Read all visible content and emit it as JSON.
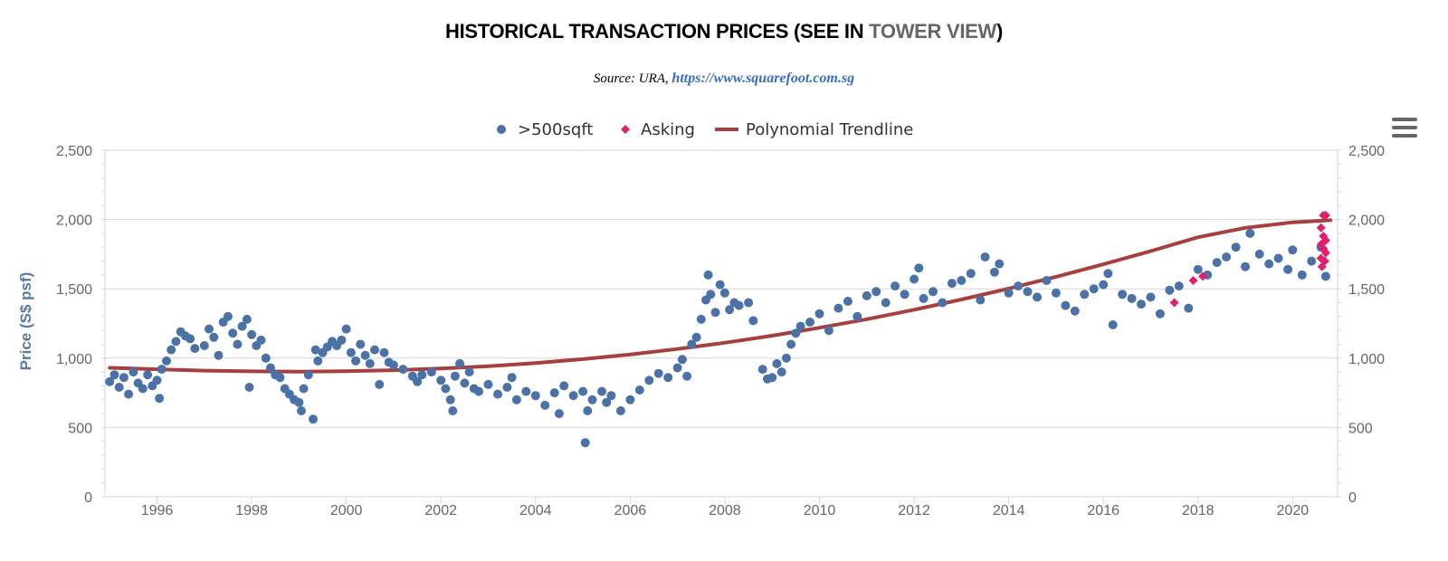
{
  "header": {
    "title_prefix": "HISTORICAL TRANSACTION PRICES (SEE IN ",
    "title_link": "TOWER VIEW",
    "title_suffix": ")",
    "source_prefix": "Source: URA, ",
    "source_url": "https://www.squarefoot.com.sg"
  },
  "menu_icon": "hamburger-menu-icon",
  "chart_data": {
    "type": "scatter",
    "ylabel": "Price (S$ psf)",
    "xlim": [
      1994.9,
      2020.95
    ],
    "ylim": [
      0,
      2500
    ],
    "x_ticks": [
      "1996",
      "1998",
      "2000",
      "2002",
      "2004",
      "2006",
      "2008",
      "2010",
      "2012",
      "2014",
      "2016",
      "2018",
      "2020"
    ],
    "y_ticks": [
      "0",
      "500",
      "1,000",
      "1,500",
      "2,000",
      "2,500"
    ],
    "grid": true,
    "legend_position": "top-center",
    "legend": [
      ">500sqft",
      "Asking",
      "Polynomial Trendline"
    ],
    "colors": {
      "transactions": "#4a72a6",
      "asking": "#e0206a",
      "trendline": "#a83f3f"
    },
    "series": [
      {
        "name": ">500sqft",
        "marker": "circle",
        "points": [
          [
            1995.0,
            830
          ],
          [
            1995.1,
            880
          ],
          [
            1995.2,
            790
          ],
          [
            1995.3,
            860
          ],
          [
            1995.4,
            740
          ],
          [
            1995.5,
            900
          ],
          [
            1995.6,
            820
          ],
          [
            1995.7,
            780
          ],
          [
            1995.8,
            880
          ],
          [
            1995.9,
            800
          ],
          [
            1996.0,
            840
          ],
          [
            1996.05,
            710
          ],
          [
            1996.1,
            920
          ],
          [
            1996.2,
            980
          ],
          [
            1996.3,
            1060
          ],
          [
            1996.4,
            1120
          ],
          [
            1996.5,
            1190
          ],
          [
            1996.6,
            1160
          ],
          [
            1996.7,
            1140
          ],
          [
            1996.8,
            1070
          ],
          [
            1997.0,
            1090
          ],
          [
            1997.1,
            1210
          ],
          [
            1997.2,
            1150
          ],
          [
            1997.3,
            1020
          ],
          [
            1997.4,
            1260
          ],
          [
            1997.5,
            1300
          ],
          [
            1997.6,
            1180
          ],
          [
            1997.7,
            1100
          ],
          [
            1997.8,
            1230
          ],
          [
            1997.9,
            1280
          ],
          [
            1998.0,
            1170
          ],
          [
            1998.1,
            1090
          ],
          [
            1998.2,
            1130
          ],
          [
            1998.3,
            1000
          ],
          [
            1997.95,
            790
          ],
          [
            1998.4,
            930
          ],
          [
            1998.5,
            880
          ],
          [
            1998.6,
            860
          ],
          [
            1998.7,
            780
          ],
          [
            1998.8,
            740
          ],
          [
            1998.9,
            700
          ],
          [
            1999.0,
            680
          ],
          [
            1999.05,
            620
          ],
          [
            1999.1,
            780
          ],
          [
            1999.2,
            880
          ],
          [
            1999.3,
            560
          ],
          [
            1999.35,
            1060
          ],
          [
            1999.4,
            980
          ],
          [
            1999.5,
            1040
          ],
          [
            1999.6,
            1080
          ],
          [
            1999.7,
            1120
          ],
          [
            1999.8,
            1090
          ],
          [
            1999.9,
            1130
          ],
          [
            2000.0,
            1210
          ],
          [
            2000.1,
            1040
          ],
          [
            2000.2,
            980
          ],
          [
            2000.3,
            1100
          ],
          [
            2000.4,
            1020
          ],
          [
            2000.5,
            960
          ],
          [
            2000.6,
            1060
          ],
          [
            2000.7,
            810
          ],
          [
            2000.8,
            1040
          ],
          [
            2000.9,
            970
          ],
          [
            2001.0,
            950
          ],
          [
            2001.2,
            920
          ],
          [
            2001.4,
            870
          ],
          [
            2001.5,
            830
          ],
          [
            2001.6,
            880
          ],
          [
            2001.8,
            900
          ],
          [
            2002.0,
            840
          ],
          [
            2002.1,
            780
          ],
          [
            2002.2,
            700
          ],
          [
            2002.25,
            620
          ],
          [
            2002.3,
            870
          ],
          [
            2002.4,
            960
          ],
          [
            2002.5,
            820
          ],
          [
            2002.6,
            900
          ],
          [
            2002.7,
            780
          ],
          [
            2002.8,
            760
          ],
          [
            2003.0,
            810
          ],
          [
            2003.2,
            740
          ],
          [
            2003.4,
            790
          ],
          [
            2003.5,
            860
          ],
          [
            2003.6,
            700
          ],
          [
            2003.8,
            760
          ],
          [
            2004.0,
            730
          ],
          [
            2004.2,
            660
          ],
          [
            2004.4,
            750
          ],
          [
            2004.5,
            600
          ],
          [
            2004.6,
            800
          ],
          [
            2004.8,
            730
          ],
          [
            2005.0,
            760
          ],
          [
            2005.05,
            390
          ],
          [
            2005.1,
            620
          ],
          [
            2005.2,
            700
          ],
          [
            2005.4,
            760
          ],
          [
            2005.5,
            680
          ],
          [
            2005.6,
            730
          ],
          [
            2005.8,
            620
          ],
          [
            2006.0,
            700
          ],
          [
            2006.2,
            770
          ],
          [
            2006.4,
            840
          ],
          [
            2006.6,
            890
          ],
          [
            2006.8,
            860
          ],
          [
            2007.0,
            930
          ],
          [
            2007.1,
            990
          ],
          [
            2007.2,
            870
          ],
          [
            2007.3,
            1100
          ],
          [
            2007.4,
            1150
          ],
          [
            2007.5,
            1280
          ],
          [
            2007.6,
            1420
          ],
          [
            2007.65,
            1600
          ],
          [
            2007.7,
            1460
          ],
          [
            2007.8,
            1330
          ],
          [
            2007.9,
            1530
          ],
          [
            2008.0,
            1470
          ],
          [
            2008.1,
            1350
          ],
          [
            2008.2,
            1400
          ],
          [
            2008.3,
            1380
          ],
          [
            2008.5,
            1400
          ],
          [
            2008.6,
            1270
          ],
          [
            2008.8,
            920
          ],
          [
            2008.9,
            850
          ],
          [
            2009.0,
            860
          ],
          [
            2009.1,
            960
          ],
          [
            2009.2,
            900
          ],
          [
            2009.3,
            1000
          ],
          [
            2009.4,
            1100
          ],
          [
            2009.5,
            1180
          ],
          [
            2009.6,
            1230
          ],
          [
            2009.8,
            1260
          ],
          [
            2010.0,
            1320
          ],
          [
            2010.2,
            1200
          ],
          [
            2010.4,
            1360
          ],
          [
            2010.6,
            1410
          ],
          [
            2010.8,
            1300
          ],
          [
            2011.0,
            1450
          ],
          [
            2011.2,
            1480
          ],
          [
            2011.4,
            1400
          ],
          [
            2011.6,
            1520
          ],
          [
            2011.8,
            1460
          ],
          [
            2012.0,
            1570
          ],
          [
            2012.1,
            1650
          ],
          [
            2012.2,
            1430
          ],
          [
            2012.4,
            1480
          ],
          [
            2012.6,
            1400
          ],
          [
            2012.8,
            1540
          ],
          [
            2013.0,
            1560
          ],
          [
            2013.2,
            1610
          ],
          [
            2013.4,
            1420
          ],
          [
            2013.5,
            1730
          ],
          [
            2013.7,
            1620
          ],
          [
            2013.8,
            1680
          ],
          [
            2014.0,
            1470
          ],
          [
            2014.2,
            1520
          ],
          [
            2014.4,
            1480
          ],
          [
            2014.6,
            1440
          ],
          [
            2014.8,
            1560
          ],
          [
            2015.0,
            1470
          ],
          [
            2015.2,
            1380
          ],
          [
            2015.4,
            1340
          ],
          [
            2015.6,
            1460
          ],
          [
            2015.8,
            1500
          ],
          [
            2016.0,
            1530
          ],
          [
            2016.1,
            1610
          ],
          [
            2016.2,
            1240
          ],
          [
            2016.4,
            1460
          ],
          [
            2016.6,
            1430
          ],
          [
            2016.8,
            1390
          ],
          [
            2017.0,
            1440
          ],
          [
            2017.2,
            1320
          ],
          [
            2017.4,
            1490
          ],
          [
            2017.6,
            1520
          ],
          [
            2017.8,
            1360
          ],
          [
            2018.0,
            1640
          ],
          [
            2018.2,
            1600
          ],
          [
            2018.4,
            1690
          ],
          [
            2018.6,
            1730
          ],
          [
            2018.8,
            1800
          ],
          [
            2019.0,
            1660
          ],
          [
            2019.1,
            1900
          ],
          [
            2019.3,
            1750
          ],
          [
            2019.5,
            1680
          ],
          [
            2019.7,
            1720
          ],
          [
            2019.9,
            1640
          ],
          [
            2020.0,
            1780
          ],
          [
            2020.2,
            1600
          ],
          [
            2020.4,
            1700
          ],
          [
            2020.6,
            1800
          ],
          [
            2020.7,
            1590
          ]
        ]
      },
      {
        "name": "Asking",
        "marker": "diamond",
        "points": [
          [
            2017.5,
            1400
          ],
          [
            2017.9,
            1560
          ],
          [
            2018.1,
            1590
          ],
          [
            2020.65,
            2030
          ],
          [
            2020.7,
            2030
          ],
          [
            2020.6,
            1940
          ],
          [
            2020.65,
            1880
          ],
          [
            2020.7,
            1850
          ],
          [
            2020.6,
            1820
          ],
          [
            2020.65,
            1790
          ],
          [
            2020.7,
            1760
          ],
          [
            2020.6,
            1720
          ],
          [
            2020.68,
            1700
          ],
          [
            2020.62,
            1660
          ]
        ]
      },
      {
        "name": "Polynomial Trendline",
        "type": "line",
        "points": [
          [
            1995.0,
            930
          ],
          [
            1996.0,
            920
          ],
          [
            1997.0,
            910
          ],
          [
            1998.0,
            905
          ],
          [
            1999.0,
            903
          ],
          [
            2000.0,
            906
          ],
          [
            2001.0,
            913
          ],
          [
            2002.0,
            925
          ],
          [
            2003.0,
            942
          ],
          [
            2004.0,
            965
          ],
          [
            2005.0,
            993
          ],
          [
            2006.0,
            1027
          ],
          [
            2007.0,
            1066
          ],
          [
            2008.0,
            1111
          ],
          [
            2009.0,
            1162
          ],
          [
            2010.0,
            1219
          ],
          [
            2011.0,
            1281
          ],
          [
            2012.0,
            1349
          ],
          [
            2013.0,
            1423
          ],
          [
            2014.0,
            1502
          ],
          [
            2015.0,
            1587
          ],
          [
            2016.0,
            1677
          ],
          [
            2017.0,
            1772
          ],
          [
            2018.0,
            1872
          ],
          [
            2019.0,
            1940
          ],
          [
            2020.0,
            1980
          ],
          [
            2020.8,
            1995
          ]
        ]
      }
    ]
  }
}
